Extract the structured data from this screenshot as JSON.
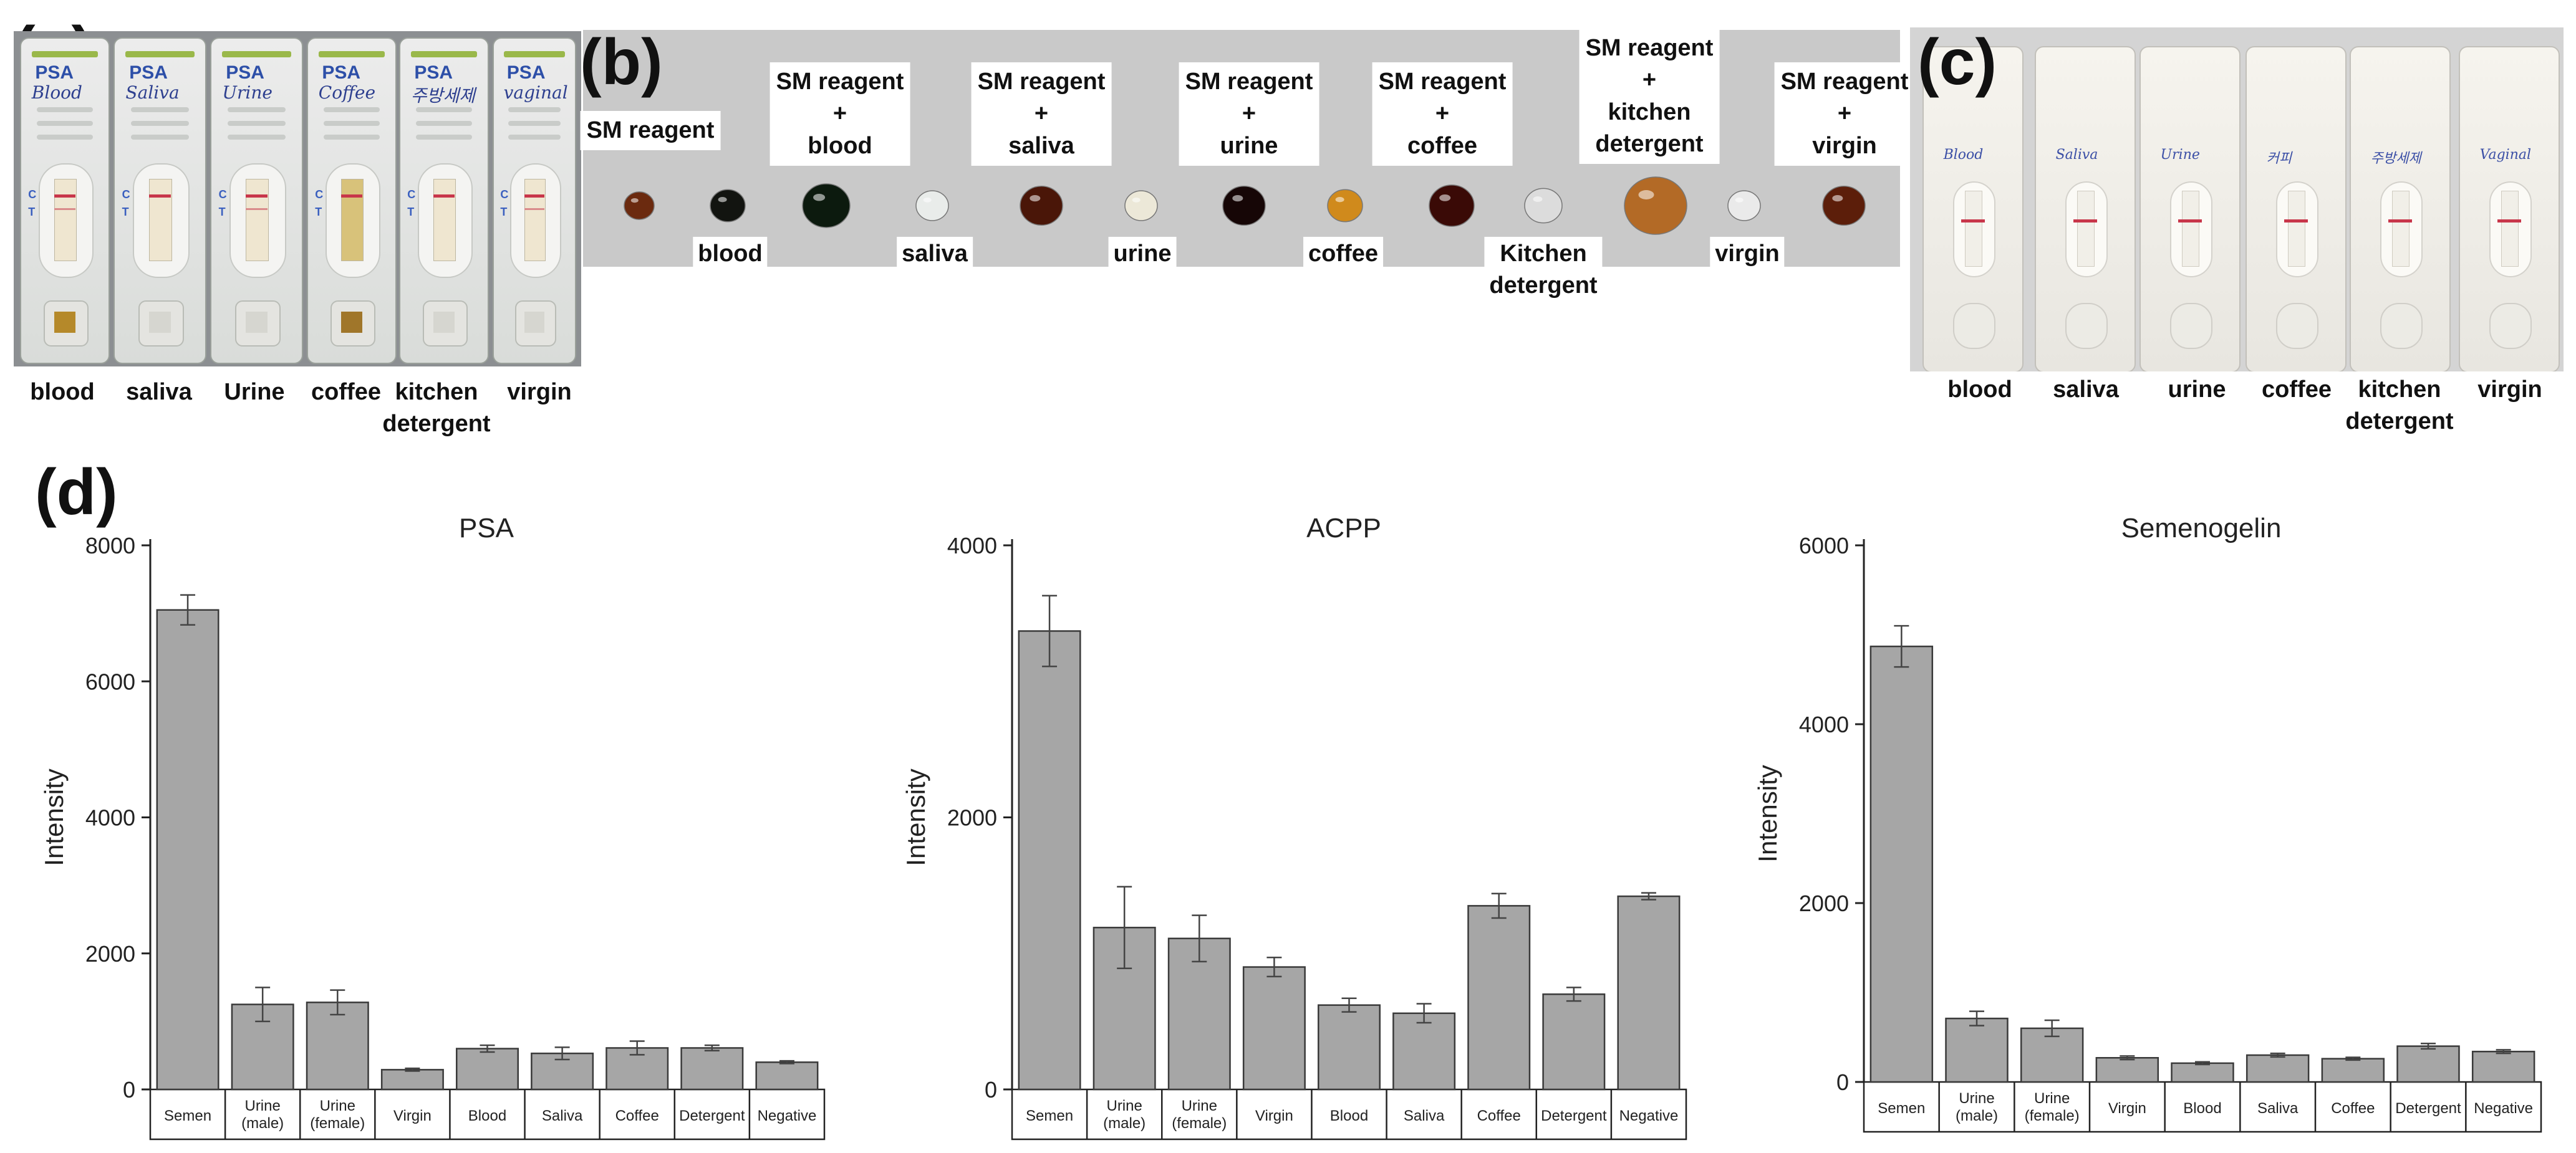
{
  "panel_labels": {
    "a": "(a)",
    "b": "(b)",
    "c": "(c)",
    "d": "(d)"
  },
  "panel_a": {
    "cassette_headers": [
      "PSA",
      "PSA",
      "PSA",
      "PSA",
      "PSA",
      "PSA"
    ],
    "handwritten": [
      "Blood",
      "Saliva",
      "Urine",
      "Coffee",
      "주방세제",
      "vaginal"
    ],
    "strip_marks": {
      "c": "C",
      "t": "T"
    },
    "captions": [
      {
        "line1": "blood",
        "line2": ""
      },
      {
        "line1": "saliva",
        "line2": ""
      },
      {
        "line1": "Urine",
        "line2": ""
      },
      {
        "line1": "coffee",
        "line2": ""
      },
      {
        "line1": "kitchen",
        "line2": "detergent"
      },
      {
        "line1": "virgin",
        "line2": ""
      }
    ]
  },
  "panel_b": {
    "reagent_labels": [
      {
        "line1": "SM reagent",
        "line2": "",
        "line3": "",
        "line4": ""
      },
      {
        "line1": "SM reagent",
        "line2": "+",
        "line3": "blood",
        "line4": ""
      },
      {
        "line1": "SM reagent",
        "line2": "+",
        "line3": "saliva",
        "line4": ""
      },
      {
        "line1": "SM reagent",
        "line2": "+",
        "line3": "urine",
        "line4": ""
      },
      {
        "line1": "SM reagent",
        "line2": "+",
        "line3": "coffee",
        "line4": ""
      },
      {
        "line1": "SM reagent",
        "line2": "+",
        "line3": "kitchen",
        "line4": "detergent"
      },
      {
        "line1": "SM reagent",
        "line2": "+",
        "line3": "virgin",
        "line4": ""
      }
    ],
    "sample_labels": [
      {
        "line1": "blood",
        "line2": ""
      },
      {
        "line1": "saliva",
        "line2": ""
      },
      {
        "line1": "urine",
        "line2": ""
      },
      {
        "line1": "coffee",
        "line2": ""
      },
      {
        "line1": "Kitchen",
        "line2": "detergent"
      },
      {
        "line1": "virgin",
        "line2": ""
      }
    ]
  },
  "panel_c": {
    "handwritten": [
      "Blood",
      "Saliva",
      "Urine",
      "커피",
      "주방세제",
      "Vaginal"
    ],
    "captions": [
      {
        "line1": "blood",
        "line2": ""
      },
      {
        "line1": "saliva",
        "line2": ""
      },
      {
        "line1": "urine",
        "line2": ""
      },
      {
        "line1": "coffee",
        "line2": ""
      },
      {
        "line1": "kitchen",
        "line2": "detergent"
      },
      {
        "line1": "virgin",
        "line2": ""
      }
    ]
  },
  "colors": {
    "bar": "#a6a6a6",
    "bar_edge": "#3a3a3a",
    "photo_a_bg": "#8c8f92",
    "photo_b_bg": "#c9c9c9",
    "photo_c_bg": "#d4d4d4",
    "control_line": "#c8364a"
  },
  "chart_data": [
    {
      "type": "bar",
      "title": "PSA",
      "xlabel": "",
      "ylabel": "Intensity",
      "ylim": [
        0,
        8000
      ],
      "yticks": [
        0,
        2000,
        4000,
        6000,
        8000
      ],
      "categories": [
        {
          "line1": "Semen",
          "line2": ""
        },
        {
          "line1": "Urine",
          "line2": "(male)"
        },
        {
          "line1": "Urine",
          "line2": "(female)"
        },
        {
          "line1": "Virgin",
          "line2": ""
        },
        {
          "line1": "Blood",
          "line2": ""
        },
        {
          "line1": "Saliva",
          "line2": ""
        },
        {
          "line1": "Coffee",
          "line2": ""
        },
        {
          "line1": "Detergent",
          "line2": ""
        },
        {
          "line1": "Negative",
          "line2": ""
        }
      ],
      "values": [
        7050,
        1250,
        1280,
        290,
        600,
        530,
        610,
        610,
        400
      ],
      "errors": [
        220,
        250,
        180,
        20,
        50,
        90,
        100,
        40,
        20
      ]
    },
    {
      "type": "bar",
      "title": "ACPP",
      "xlabel": "",
      "ylabel": "Intensity",
      "ylim": [
        0,
        4000
      ],
      "yticks": [
        0,
        2000,
        4000
      ],
      "categories": [
        {
          "line1": "Semen",
          "line2": ""
        },
        {
          "line1": "Urine",
          "line2": "(male)"
        },
        {
          "line1": "Urine",
          "line2": "(female)"
        },
        {
          "line1": "Virgin",
          "line2": ""
        },
        {
          "line1": "Blood",
          "line2": ""
        },
        {
          "line1": "Saliva",
          "line2": ""
        },
        {
          "line1": "Coffee",
          "line2": ""
        },
        {
          "line1": "Detergent",
          "line2": ""
        },
        {
          "line1": "Negative",
          "line2": ""
        }
      ],
      "values": [
        3370,
        1190,
        1110,
        900,
        620,
        560,
        1350,
        700,
        1420
      ],
      "errors": [
        260,
        300,
        170,
        70,
        50,
        70,
        90,
        50,
        25
      ]
    },
    {
      "type": "bar",
      "title": "Semenogelin",
      "xlabel": "",
      "ylabel": "Intensity",
      "ylim": [
        0,
        6000
      ],
      "yticks": [
        0,
        2000,
        4000,
        6000
      ],
      "categories": [
        {
          "line1": "Semen",
          "line2": ""
        },
        {
          "line1": "Urine",
          "line2": "(male)"
        },
        {
          "line1": "Urine",
          "line2": "(female)"
        },
        {
          "line1": "Virgin",
          "line2": ""
        },
        {
          "line1": "Blood",
          "line2": ""
        },
        {
          "line1": "Saliva",
          "line2": ""
        },
        {
          "line1": "Coffee",
          "line2": ""
        },
        {
          "line1": "Detergent",
          "line2": ""
        },
        {
          "line1": "Negative",
          "line2": ""
        }
      ],
      "values": [
        4870,
        710,
        600,
        270,
        210,
        300,
        260,
        400,
        340
      ],
      "errors": [
        230,
        80,
        90,
        20,
        15,
        20,
        15,
        30,
        20
      ]
    }
  ]
}
